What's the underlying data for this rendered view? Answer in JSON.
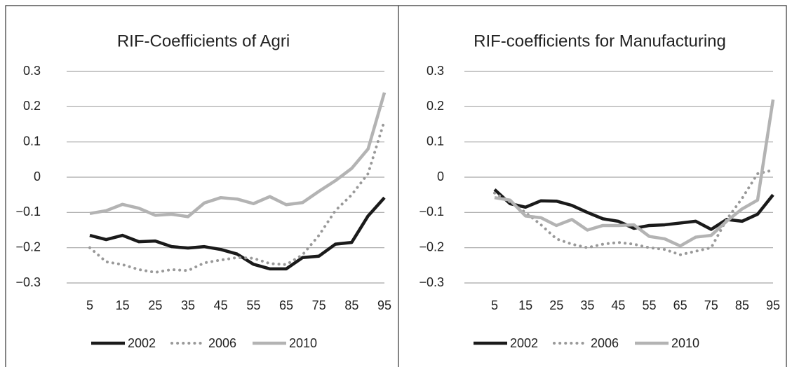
{
  "chart_data": [
    {
      "type": "line",
      "title": "RIF-Coefficients of Agri",
      "x": [
        5,
        10,
        15,
        20,
        25,
        30,
        35,
        40,
        45,
        50,
        55,
        60,
        65,
        70,
        75,
        80,
        85,
        90,
        95
      ],
      "xlim": [
        5,
        95
      ],
      "xticks": [
        5,
        15,
        25,
        35,
        45,
        55,
        65,
        75,
        85,
        95
      ],
      "ylim": [
        -0.3,
        0.3
      ],
      "yticks": [
        {
          "value": -0.3,
          "label": "−0.3"
        },
        {
          "value": -0.2,
          "label": "−0.2"
        },
        {
          "value": -0.1,
          "label": "−0.1"
        },
        0,
        0.1,
        0.2,
        0.3
      ],
      "grid": true,
      "legend": "bottom",
      "series": [
        {
          "name": "2002",
          "color": "#1a1a1a",
          "style": "solid",
          "values": [
            -0.165,
            -0.177,
            -0.165,
            -0.183,
            -0.181,
            -0.197,
            -0.201,
            -0.197,
            -0.205,
            -0.218,
            -0.247,
            -0.26,
            -0.26,
            -0.228,
            -0.224,
            -0.19,
            -0.185,
            -0.11,
            -0.058
          ]
        },
        {
          "name": "2006",
          "color": "#999999",
          "style": "dotted",
          "values": [
            -0.2,
            -0.24,
            -0.248,
            -0.262,
            -0.27,
            -0.262,
            -0.265,
            -0.243,
            -0.235,
            -0.228,
            -0.23,
            -0.245,
            -0.248,
            -0.22,
            -0.165,
            -0.095,
            -0.05,
            0.01,
            0.16
          ]
        },
        {
          "name": "2010",
          "color": "#b3b3b3",
          "style": "solid",
          "values": [
            -0.103,
            -0.095,
            -0.077,
            -0.088,
            -0.108,
            -0.105,
            -0.112,
            -0.073,
            -0.058,
            -0.062,
            -0.075,
            -0.055,
            -0.078,
            -0.072,
            -0.04,
            -0.01,
            0.025,
            0.08,
            0.24
          ]
        }
      ]
    },
    {
      "type": "line",
      "title": "RIF-coefficients for Manufacturing",
      "x": [
        5,
        10,
        15,
        20,
        25,
        30,
        35,
        40,
        45,
        50,
        55,
        60,
        65,
        70,
        75,
        80,
        85,
        90,
        95
      ],
      "xlim": [
        5,
        95
      ],
      "xticks": [
        5,
        15,
        25,
        35,
        45,
        55,
        65,
        75,
        85,
        95
      ],
      "ylim": [
        -0.3,
        0.3
      ],
      "yticks": [
        {
          "value": -0.3,
          "label": "−0.3"
        },
        {
          "value": -0.2,
          "label": "−0.2"
        },
        {
          "value": -0.1,
          "label": "−0.1"
        },
        0,
        0.1,
        0.2,
        0.3
      ],
      "grid": true,
      "legend": "bottom",
      "series": [
        {
          "name": "2002",
          "color": "#1a1a1a",
          "style": "solid",
          "values": [
            -0.035,
            -0.075,
            -0.085,
            -0.067,
            -0.068,
            -0.08,
            -0.1,
            -0.118,
            -0.125,
            -0.145,
            -0.137,
            -0.135,
            -0.13,
            -0.125,
            -0.148,
            -0.12,
            -0.125,
            -0.105,
            -0.05
          ]
        },
        {
          "name": "2006",
          "color": "#999999",
          "style": "dotted",
          "values": [
            -0.045,
            -0.07,
            -0.1,
            -0.135,
            -0.175,
            -0.19,
            -0.2,
            -0.19,
            -0.185,
            -0.19,
            -0.2,
            -0.205,
            -0.22,
            -0.21,
            -0.2,
            -0.12,
            -0.06,
            0.01,
            0.02
          ]
        },
        {
          "name": "2010",
          "color": "#b3b3b3",
          "style": "solid",
          "values": [
            -0.058,
            -0.065,
            -0.11,
            -0.115,
            -0.137,
            -0.12,
            -0.15,
            -0.137,
            -0.137,
            -0.135,
            -0.168,
            -0.175,
            -0.195,
            -0.17,
            -0.165,
            -0.125,
            -0.09,
            -0.065,
            0.22
          ]
        }
      ]
    }
  ]
}
